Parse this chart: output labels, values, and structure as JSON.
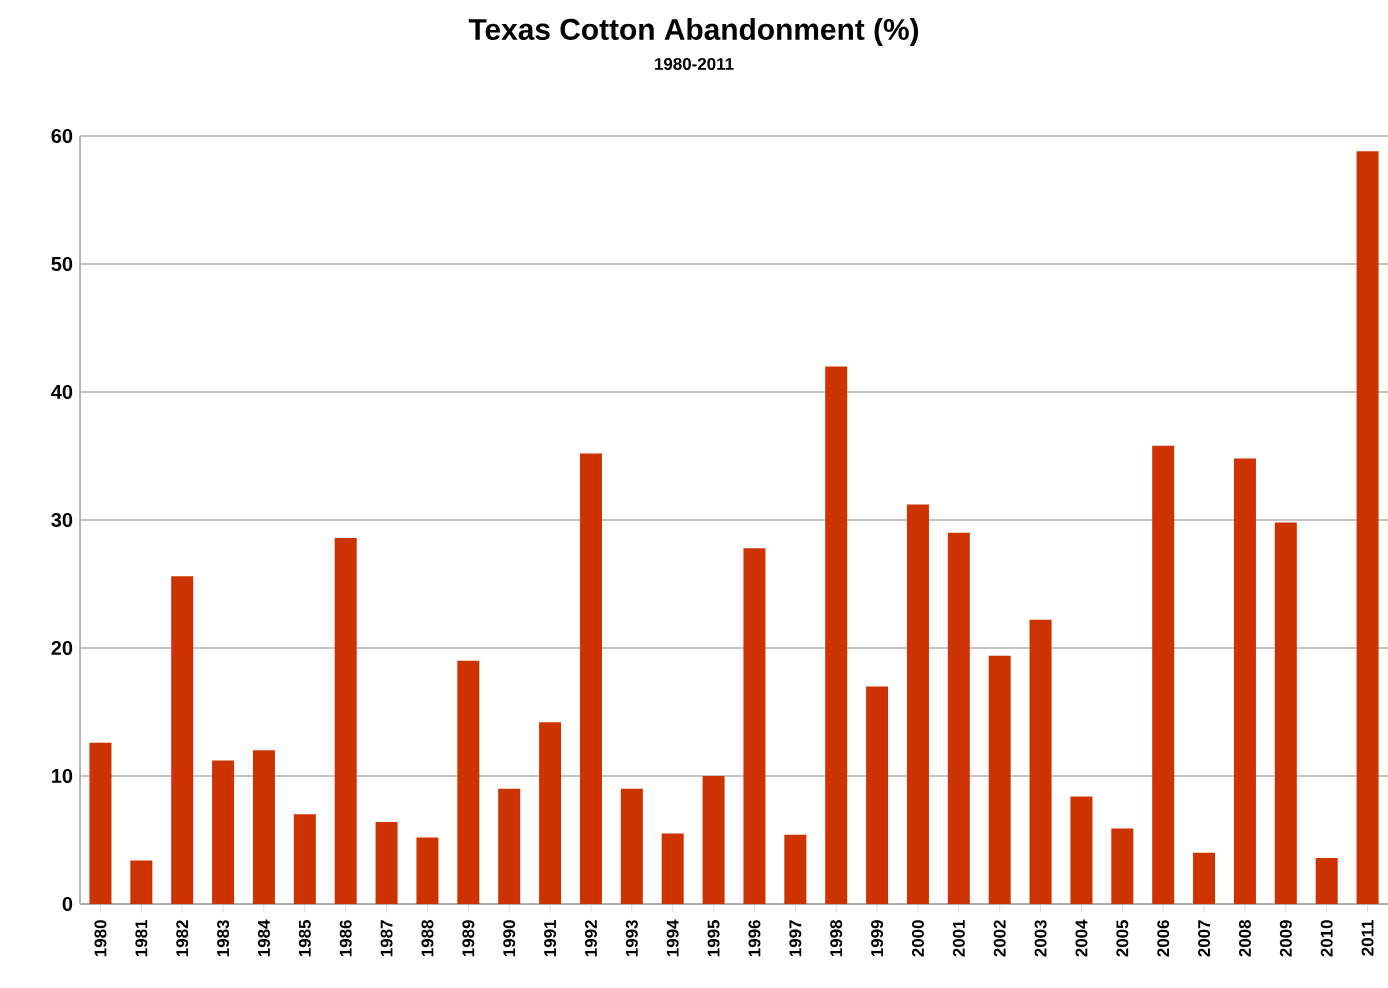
{
  "chart_data": {
    "type": "bar",
    "title": "Texas Cotton Abandonment (%)",
    "subtitle": "1980-2011",
    "categories": [
      "1980",
      "1981",
      "1982",
      "1983",
      "1984",
      "1985",
      "1986",
      "1987",
      "1988",
      "1989",
      "1990",
      "1991",
      "1992",
      "1993",
      "1994",
      "1995",
      "1996",
      "1997",
      "1998",
      "1999",
      "2000",
      "2001",
      "2002",
      "2003",
      "2004",
      "2005",
      "2006",
      "2007",
      "2008",
      "2009",
      "2010",
      "2011"
    ],
    "values": [
      12.6,
      3.4,
      25.6,
      11.2,
      12,
      7,
      28.6,
      6.4,
      5.2,
      19,
      9,
      14.2,
      35.2,
      9,
      5.5,
      10,
      27.8,
      5.4,
      42,
      17,
      31.2,
      29,
      19.4,
      22.2,
      8.4,
      5.9,
      35.8,
      4,
      34.8,
      29.8,
      3.6,
      58.8
    ],
    "color": "#cc3300",
    "ylim": [
      0,
      60
    ],
    "yticks": [
      0,
      10,
      20,
      30,
      40,
      50,
      60
    ],
    "grid": "y"
  }
}
